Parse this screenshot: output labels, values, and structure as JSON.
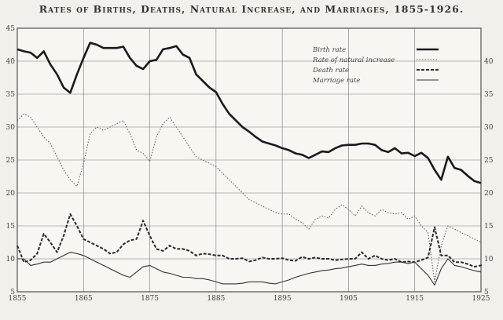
{
  "chart_data": {
    "type": "line",
    "title": "Rates of Births, Deaths, Natural Increase, and Marriages, 1855-1926.",
    "xlabel": "",
    "ylabel": "",
    "xlim": [
      1855,
      1925
    ],
    "ylim": [
      5,
      45
    ],
    "x_ticks": [
      1855,
      1865,
      1875,
      1885,
      1895,
      1905,
      1915,
      1925
    ],
    "y_ticks_left": [
      5,
      10,
      15,
      20,
      25,
      30,
      35,
      40,
      45
    ],
    "y_ticks_right": [
      5,
      10,
      15,
      20,
      25,
      30,
      35,
      40
    ],
    "grid": true,
    "legend_position": "top-right",
    "series": [
      {
        "name": "Birth rate",
        "style": "solid-thick",
        "color": "#1a1a1a",
        "points": [
          [
            1855,
            41.8
          ],
          [
            1856,
            41.5
          ],
          [
            1857,
            41.3
          ],
          [
            1858,
            40.5
          ],
          [
            1859,
            41.5
          ],
          [
            1860,
            39.5
          ],
          [
            1861,
            38
          ],
          [
            1862,
            36
          ],
          [
            1863,
            35.2
          ],
          [
            1864,
            38
          ],
          [
            1865,
            40.5
          ],
          [
            1866,
            42.8
          ],
          [
            1867,
            42.5
          ],
          [
            1868,
            42
          ],
          [
            1869,
            42
          ],
          [
            1870,
            42
          ],
          [
            1871,
            42.2
          ],
          [
            1872,
            40.5
          ],
          [
            1873,
            39.3
          ],
          [
            1874,
            38.8
          ],
          [
            1875,
            40
          ],
          [
            1876,
            40.2
          ],
          [
            1877,
            41.8
          ],
          [
            1878,
            42
          ],
          [
            1879,
            42.3
          ],
          [
            1880,
            41
          ],
          [
            1881,
            40.5
          ],
          [
            1882,
            38
          ],
          [
            1883,
            37
          ],
          [
            1884,
            36
          ],
          [
            1885,
            35.3
          ],
          [
            1886,
            33.5
          ],
          [
            1887,
            32
          ],
          [
            1888,
            31
          ],
          [
            1889,
            30
          ],
          [
            1890,
            29.3
          ],
          [
            1891,
            28.5
          ],
          [
            1892,
            27.8
          ],
          [
            1893,
            27.5
          ],
          [
            1894,
            27.2
          ],
          [
            1895,
            26.8
          ],
          [
            1896,
            26.5
          ],
          [
            1897,
            26
          ],
          [
            1898,
            25.8
          ],
          [
            1899,
            25.3
          ],
          [
            1900,
            25.8
          ],
          [
            1901,
            26.3
          ],
          [
            1902,
            26.2
          ],
          [
            1903,
            26.8
          ],
          [
            1904,
            27.2
          ],
          [
            1905,
            27.3
          ],
          [
            1906,
            27.3
          ],
          [
            1907,
            27.5
          ],
          [
            1908,
            27.5
          ],
          [
            1909,
            27.3
          ],
          [
            1910,
            26.5
          ],
          [
            1911,
            26.2
          ],
          [
            1912,
            26.8
          ],
          [
            1913,
            26
          ],
          [
            1914,
            26.1
          ],
          [
            1915,
            25.6
          ],
          [
            1916,
            26.1
          ],
          [
            1917,
            25.3
          ],
          [
            1918,
            23.5
          ],
          [
            1919,
            22
          ],
          [
            1920,
            25.5
          ],
          [
            1921,
            23.8
          ],
          [
            1922,
            23.5
          ],
          [
            1923,
            22.6
          ],
          [
            1924,
            21.8
          ],
          [
            1925,
            21.5
          ],
          [
            1926,
            21.5
          ]
        ]
      },
      {
        "name": "Rate of natural increase",
        "style": "dotted-thin",
        "color": "#555555",
        "points": [
          [
            1855,
            31
          ],
          [
            1856,
            32
          ],
          [
            1857,
            31.5
          ],
          [
            1858,
            30
          ],
          [
            1859,
            28.5
          ],
          [
            1860,
            27.5
          ],
          [
            1861,
            25.5
          ],
          [
            1862,
            23.5
          ],
          [
            1863,
            22
          ],
          [
            1864,
            21
          ],
          [
            1865,
            24.5
          ],
          [
            1866,
            29
          ],
          [
            1867,
            30
          ],
          [
            1868,
            29.5
          ],
          [
            1869,
            30
          ],
          [
            1870,
            30.5
          ],
          [
            1871,
            31
          ],
          [
            1872,
            29
          ],
          [
            1873,
            26.5
          ],
          [
            1874,
            26
          ],
          [
            1875,
            24.8
          ],
          [
            1876,
            28.5
          ],
          [
            1877,
            30.5
          ],
          [
            1878,
            31.5
          ],
          [
            1879,
            30
          ],
          [
            1880,
            28.5
          ],
          [
            1881,
            27
          ],
          [
            1882,
            25.5
          ],
          [
            1883,
            25
          ],
          [
            1884,
            24.5
          ],
          [
            1885,
            24
          ],
          [
            1886,
            23
          ],
          [
            1887,
            22
          ],
          [
            1888,
            21
          ],
          [
            1889,
            20
          ],
          [
            1890,
            19
          ],
          [
            1891,
            18.5
          ],
          [
            1892,
            18
          ],
          [
            1893,
            17.5
          ],
          [
            1894,
            17
          ],
          [
            1895,
            16.8
          ],
          [
            1896,
            16.8
          ],
          [
            1897,
            16
          ],
          [
            1898,
            15.5
          ],
          [
            1899,
            14.5
          ],
          [
            1900,
            16
          ],
          [
            1901,
            16.5
          ],
          [
            1902,
            16.2
          ],
          [
            1903,
            17.5
          ],
          [
            1904,
            18.2
          ],
          [
            1905,
            17.5
          ],
          [
            1906,
            16.5
          ],
          [
            1907,
            18
          ],
          [
            1908,
            17
          ],
          [
            1909,
            16.5
          ],
          [
            1910,
            17.5
          ],
          [
            1911,
            17
          ],
          [
            1912,
            16.8
          ],
          [
            1913,
            17
          ],
          [
            1914,
            16
          ],
          [
            1915,
            16.5
          ],
          [
            1916,
            15
          ],
          [
            1917,
            14
          ],
          [
            1918,
            6.5
          ],
          [
            1919,
            12
          ],
          [
            1920,
            15
          ],
          [
            1921,
            14.5
          ],
          [
            1922,
            14
          ],
          [
            1923,
            13.5
          ],
          [
            1924,
            13
          ],
          [
            1925,
            12.5
          ],
          [
            1926,
            12
          ]
        ]
      },
      {
        "name": "Death rate",
        "style": "dashed-thick",
        "color": "#2a2a2a",
        "points": [
          [
            1855,
            12
          ],
          [
            1856,
            9.5
          ],
          [
            1857,
            9.8
          ],
          [
            1858,
            10.8
          ],
          [
            1859,
            13.8
          ],
          [
            1860,
            12.5
          ],
          [
            1861,
            11
          ],
          [
            1862,
            13.5
          ],
          [
            1863,
            16.8
          ],
          [
            1864,
            15
          ],
          [
            1865,
            13
          ],
          [
            1866,
            12.5
          ],
          [
            1867,
            12
          ],
          [
            1868,
            11.5
          ],
          [
            1869,
            10.8
          ],
          [
            1870,
            11
          ],
          [
            1871,
            12.2
          ],
          [
            1872,
            12.8
          ],
          [
            1873,
            13
          ],
          [
            1874,
            15.8
          ],
          [
            1875,
            13.5
          ],
          [
            1876,
            11.5
          ],
          [
            1877,
            11.2
          ],
          [
            1878,
            12
          ],
          [
            1879,
            11.5
          ],
          [
            1880,
            11.5
          ],
          [
            1881,
            11.2
          ],
          [
            1882,
            10.5
          ],
          [
            1883,
            10.8
          ],
          [
            1884,
            10.7
          ],
          [
            1885,
            10.5
          ],
          [
            1886,
            10.5
          ],
          [
            1887,
            10
          ],
          [
            1888,
            10
          ],
          [
            1889,
            10.1
          ],
          [
            1890,
            9.6
          ],
          [
            1891,
            9.8
          ],
          [
            1892,
            10.2
          ],
          [
            1893,
            10
          ],
          [
            1894,
            10
          ],
          [
            1895,
            10.1
          ],
          [
            1896,
            9.8
          ],
          [
            1897,
            9.7
          ],
          [
            1898,
            10.3
          ],
          [
            1899,
            10
          ],
          [
            1900,
            10.2
          ],
          [
            1901,
            10
          ],
          [
            1902,
            10
          ],
          [
            1903,
            9.8
          ],
          [
            1904,
            9.9
          ],
          [
            1905,
            10
          ],
          [
            1906,
            10
          ],
          [
            1907,
            11
          ],
          [
            1908,
            10
          ],
          [
            1909,
            10.5
          ],
          [
            1910,
            10
          ],
          [
            1911,
            9.8
          ],
          [
            1912,
            10
          ],
          [
            1913,
            9.5
          ],
          [
            1914,
            9.6
          ],
          [
            1915,
            9.5
          ],
          [
            1916,
            9.8
          ],
          [
            1917,
            10.2
          ],
          [
            1918,
            14.8
          ],
          [
            1919,
            10.5
          ],
          [
            1920,
            10.5
          ],
          [
            1921,
            9.5
          ],
          [
            1922,
            9.5
          ],
          [
            1923,
            9.2
          ],
          [
            1924,
            8.8
          ],
          [
            1925,
            9
          ],
          [
            1926,
            9.2
          ]
        ]
      },
      {
        "name": "Marriage rate",
        "style": "solid-thin",
        "color": "#333333",
        "points": [
          [
            1855,
            10
          ],
          [
            1856,
            10
          ],
          [
            1857,
            9
          ],
          [
            1858,
            9.2
          ],
          [
            1859,
            9.5
          ],
          [
            1860,
            9.5
          ],
          [
            1861,
            10
          ],
          [
            1862,
            10.5
          ],
          [
            1863,
            11
          ],
          [
            1864,
            10.8
          ],
          [
            1865,
            10.5
          ],
          [
            1866,
            10
          ],
          [
            1867,
            9.5
          ],
          [
            1868,
            9
          ],
          [
            1869,
            8.5
          ],
          [
            1870,
            8
          ],
          [
            1871,
            7.5
          ],
          [
            1872,
            7.2
          ],
          [
            1873,
            8
          ],
          [
            1874,
            8.8
          ],
          [
            1875,
            9
          ],
          [
            1876,
            8.5
          ],
          [
            1877,
            8
          ],
          [
            1878,
            7.8
          ],
          [
            1879,
            7.5
          ],
          [
            1880,
            7.2
          ],
          [
            1881,
            7.2
          ],
          [
            1882,
            7
          ],
          [
            1883,
            7
          ],
          [
            1884,
            6.8
          ],
          [
            1885,
            6.5
          ],
          [
            1886,
            6.2
          ],
          [
            1887,
            6.2
          ],
          [
            1888,
            6.2
          ],
          [
            1889,
            6.3
          ],
          [
            1890,
            6.5
          ],
          [
            1891,
            6.5
          ],
          [
            1892,
            6.5
          ],
          [
            1893,
            6.3
          ],
          [
            1894,
            6.2
          ],
          [
            1895,
            6.5
          ],
          [
            1896,
            6.8
          ],
          [
            1897,
            7.2
          ],
          [
            1898,
            7.5
          ],
          [
            1899,
            7.8
          ],
          [
            1900,
            8
          ],
          [
            1901,
            8.2
          ],
          [
            1902,
            8.3
          ],
          [
            1903,
            8.5
          ],
          [
            1904,
            8.6
          ],
          [
            1905,
            8.8
          ],
          [
            1906,
            9
          ],
          [
            1907,
            9.2
          ],
          [
            1908,
            9
          ],
          [
            1909,
            9
          ],
          [
            1910,
            9.2
          ],
          [
            1911,
            9.3
          ],
          [
            1912,
            9.5
          ],
          [
            1913,
            9.5
          ],
          [
            1914,
            9.3
          ],
          [
            1915,
            9.5
          ],
          [
            1916,
            8.5
          ],
          [
            1917,
            7.5
          ],
          [
            1918,
            6
          ],
          [
            1919,
            8.5
          ],
          [
            1920,
            10
          ],
          [
            1921,
            9
          ],
          [
            1922,
            8.8
          ],
          [
            1923,
            8.5
          ],
          [
            1924,
            8.2
          ],
          [
            1925,
            8
          ],
          [
            1926,
            8
          ]
        ]
      }
    ]
  }
}
